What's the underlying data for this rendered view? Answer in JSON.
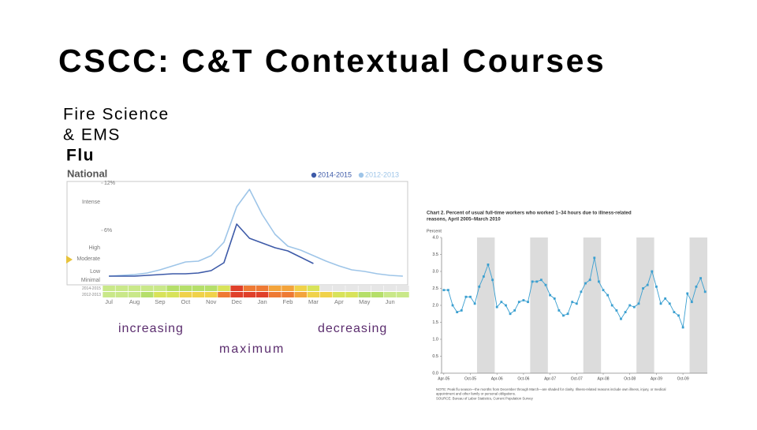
{
  "slide": {
    "title": "CSCC: C&T Contextual Courses",
    "subtitle": [
      "Fire Science",
      "& EMS",
      "Flu"
    ],
    "annotations": [
      "increasing",
      "decreasing",
      "maximum"
    ]
  },
  "chart_data": [
    {
      "type": "line",
      "title": "National",
      "categories": [
        "Jul",
        null,
        "Aug",
        null,
        "Sep",
        null,
        "Oct",
        null,
        "Nov",
        null,
        "Dec",
        null,
        "Jan",
        null,
        "Feb",
        null,
        "Mar",
        null,
        "Apr",
        null,
        "May",
        null,
        "Jun",
        null
      ],
      "series": [
        {
          "name": "2014-2015",
          "color": "#3d5aa8",
          "values": [
            0.2,
            0.2,
            0.2,
            0.3,
            0.4,
            0.5,
            0.5,
            0.6,
            0.9,
            1.9,
            6.8,
            5.0,
            4.4,
            3.8,
            3.4,
            2.6,
            1.8,
            null,
            null,
            null,
            null,
            null,
            null,
            null
          ]
        },
        {
          "name": "2012-2013",
          "color": "#9ec5e8",
          "values": [
            0.2,
            0.3,
            0.4,
            0.6,
            1.0,
            1.5,
            2.0,
            2.1,
            2.8,
            4.5,
            9.0,
            11.2,
            8.0,
            5.5,
            4.0,
            3.5,
            2.8,
            2.1,
            1.5,
            1.0,
            0.8,
            0.5,
            0.3,
            0.2
          ]
        }
      ],
      "ylim": [
        0,
        12
      ],
      "yticks": [
        {
          "value": 12,
          "label": "12%"
        },
        {
          "value": 6,
          "label": "6%"
        }
      ],
      "activity_levels": [
        "Intense",
        "High",
        "Moderate",
        "Low",
        "Minimal"
      ],
      "legend": "top-right",
      "grid": false
    },
    {
      "type": "line",
      "title": [
        "Chart 2. Percent of usual full-time workers who worked 1–34 hours due to illness-related",
        "reasons, April 2005–March 2010"
      ],
      "ylabel": "Percent",
      "categories": [
        "Apr-05",
        null,
        null,
        null,
        null,
        null,
        "Oct-05",
        null,
        null,
        null,
        null,
        null,
        "Apr-06",
        null,
        null,
        null,
        null,
        null,
        "Oct-06",
        null,
        null,
        null,
        null,
        null,
        "Apr-07",
        null,
        null,
        null,
        null,
        null,
        "Oct-07",
        null,
        null,
        null,
        null,
        null,
        "Apr-08",
        null,
        null,
        null,
        null,
        null,
        "Oct-08",
        null,
        null,
        null,
        null,
        null,
        "Apr-09",
        null,
        null,
        null,
        null,
        null,
        "Oct-09",
        null,
        null,
        null,
        null,
        null
      ],
      "values": [
        2.45,
        2.45,
        2.0,
        1.8,
        1.85,
        2.25,
        2.25,
        2.05,
        2.55,
        2.85,
        3.2,
        2.75,
        1.95,
        2.1,
        2.0,
        1.75,
        1.85,
        2.1,
        2.15,
        2.1,
        2.7,
        2.7,
        2.75,
        2.6,
        2.3,
        2.2,
        1.85,
        1.7,
        1.75,
        2.1,
        2.05,
        2.4,
        2.65,
        2.75,
        3.4,
        2.7,
        2.45,
        2.3,
        2.0,
        1.85,
        1.6,
        1.8,
        2.0,
        1.95,
        2.05,
        2.5,
        2.6,
        3.0,
        2.55,
        2.05,
        2.2,
        2.05,
        1.8,
        1.7,
        1.35,
        2.35,
        2.1,
        2.55,
        2.8,
        2.4
      ],
      "color": "#3a9fd0",
      "ylim": [
        0,
        4
      ],
      "yticks": [
        {
          "value": 0,
          "label": "0.0"
        },
        {
          "value": 0.5,
          "label": "0.5"
        },
        {
          "value": 1,
          "label": "1.0"
        },
        {
          "value": 1.5,
          "label": "1.5"
        },
        {
          "value": 2,
          "label": "2.0"
        },
        {
          "value": 2.5,
          "label": "2.5"
        },
        {
          "value": 3,
          "label": "3.0"
        },
        {
          "value": 3.5,
          "label": "3.5"
        },
        {
          "value": 4,
          "label": "4.0"
        }
      ],
      "note": [
        "NOTE: Peak flu season—the months from December through March—are shaded for clarity. Illness-related reasons include own illness, injury, or medical",
        "appointment and other family or personal obligations."
      ],
      "source": "SOURCE: Bureau of Labor Statistics, Current Population Survey",
      "grid": false
    }
  ]
}
